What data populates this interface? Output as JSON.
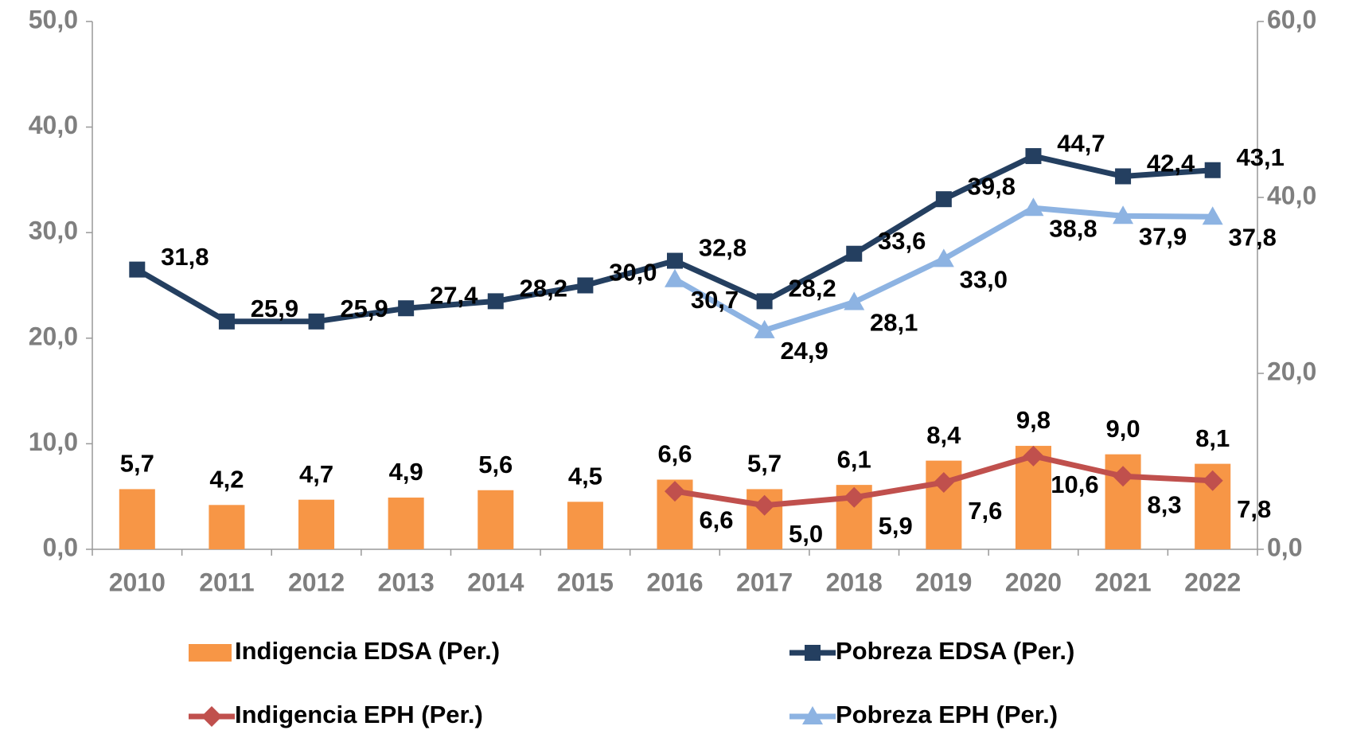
{
  "chart_data": {
    "type": "bar",
    "categories": [
      "2010",
      "2011",
      "2012",
      "2013",
      "2014",
      "2015",
      "2016",
      "2017",
      "2018",
      "2019",
      "2020",
      "2021",
      "2022"
    ],
    "ylim": [
      0,
      50
    ],
    "yticks": [
      {
        "value": 0,
        "label": "0,0"
      },
      {
        "value": 10,
        "label": "10,0"
      },
      {
        "value": 20,
        "label": "20,0"
      },
      {
        "value": 30,
        "label": "30,0"
      },
      {
        "value": 40,
        "label": "40,0"
      },
      {
        "value": 50,
        "label": "50,0"
      }
    ],
    "y2lim": [
      0,
      60
    ],
    "y2ticks": [
      {
        "value": 0,
        "label": "0,0"
      },
      {
        "value": 20,
        "label": "20,0"
      },
      {
        "value": 40,
        "label": "40,0"
      },
      {
        "value": 60,
        "label": "60,0"
      }
    ],
    "series": [
      {
        "name": "Indigencia EDSA (Per.)",
        "type": "bar",
        "color": "#f79646",
        "values": [
          5.7,
          4.2,
          4.7,
          4.9,
          5.6,
          4.5,
          6.6,
          5.7,
          6.1,
          8.4,
          9.8,
          9.0,
          8.1
        ],
        "value_labels": [
          "5,7",
          "4,2",
          "4,7",
          "4,9",
          "5,6",
          "4,5",
          "6,6",
          "5,7",
          "6,1",
          "8,4",
          "9,8",
          "9,0",
          "8,1"
        ]
      },
      {
        "name": "Pobreza EDSA (Per.)",
        "type": "line",
        "marker": "square",
        "axis": "y2",
        "color": "#243f60",
        "values": [
          31.8,
          25.9,
          25.9,
          27.4,
          28.2,
          30.0,
          32.8,
          28.2,
          33.6,
          39.8,
          44.7,
          42.4,
          43.1
        ],
        "value_labels": [
          "31,8",
          "25,9",
          "25,9",
          "27,4",
          "28,2",
          "30,0",
          "32,8",
          "28,2",
          "33,6",
          "39,8",
          "44,7",
          "42,4",
          "43,1"
        ]
      },
      {
        "name": "Indigencia EPH (Per.)",
        "type": "line",
        "marker": "diamond",
        "axis": "y2",
        "color": "#c0504d",
        "values": [
          null,
          null,
          null,
          null,
          null,
          null,
          6.6,
          5.0,
          5.9,
          7.6,
          10.6,
          8.3,
          7.8
        ],
        "value_labels": [
          null,
          null,
          null,
          null,
          null,
          null,
          "6,6",
          "5,0",
          "5,9",
          "7,6",
          "10,6",
          "8,3",
          "7,8"
        ]
      },
      {
        "name": "Pobreza EPH (Per.)",
        "type": "line",
        "marker": "triangle",
        "axis": "y2",
        "color": "#8db3e2",
        "values": [
          null,
          null,
          null,
          null,
          null,
          null,
          30.7,
          24.9,
          28.1,
          33.0,
          38.8,
          37.9,
          37.8
        ],
        "value_labels": [
          null,
          null,
          null,
          null,
          null,
          null,
          "30,7",
          "24,9",
          "28,1",
          "33,0",
          "38,8",
          "37,9",
          "37,8"
        ]
      }
    ]
  }
}
